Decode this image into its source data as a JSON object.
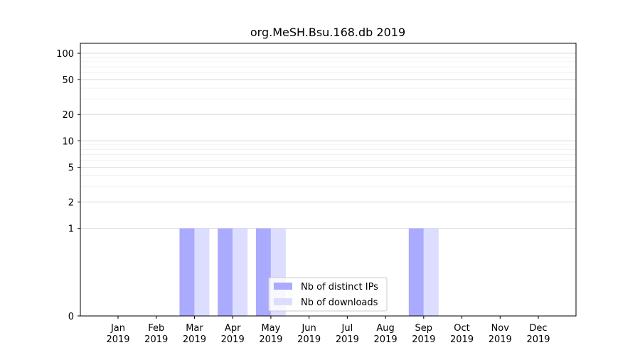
{
  "chart_data": {
    "type": "bar",
    "title": "org.MeSH.Bsu.168.db 2019",
    "xlabel": "",
    "ylabel": "",
    "yscale": "symlog",
    "ylim": [
      0,
      130
    ],
    "categories": [
      [
        "Jan",
        "2019"
      ],
      [
        "Feb",
        "2019"
      ],
      [
        "Mar",
        "2019"
      ],
      [
        "Apr",
        "2019"
      ],
      [
        "May",
        "2019"
      ],
      [
        "Jun",
        "2019"
      ],
      [
        "Jul",
        "2019"
      ],
      [
        "Aug",
        "2019"
      ],
      [
        "Sep",
        "2019"
      ],
      [
        "Oct",
        "2019"
      ],
      [
        "Nov",
        "2019"
      ],
      [
        "Dec",
        "2019"
      ]
    ],
    "yticks": [
      0,
      1,
      2,
      5,
      10,
      20,
      50,
      100
    ],
    "series": [
      {
        "name": "Nb of distinct IPs",
        "color": "#aaaaff",
        "values": [
          0,
          0,
          1,
          1,
          1,
          0,
          0,
          0,
          1,
          0,
          0,
          0
        ]
      },
      {
        "name": "Nb of downloads",
        "color": "#ddddff",
        "values": [
          0,
          0,
          1,
          1,
          1,
          0,
          0,
          0,
          1,
          0,
          0,
          0
        ]
      }
    ],
    "grid": true,
    "legend_position": "lower-center"
  }
}
